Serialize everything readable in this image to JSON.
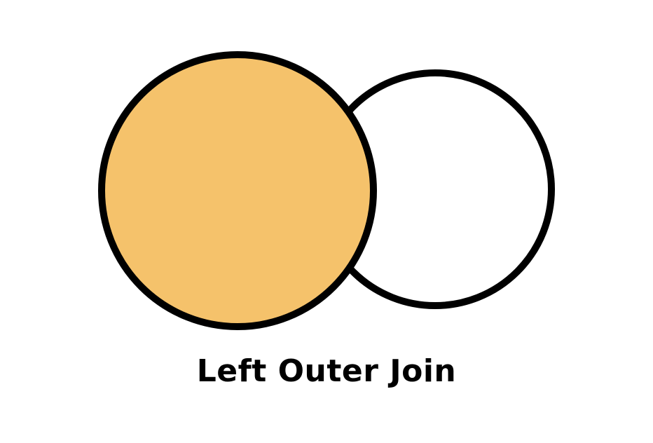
{
  "diagram": {
    "type": "venn",
    "caption": "Left Outer Join",
    "sets": [
      {
        "name": "",
        "highlighted": true
      },
      {
        "name": "",
        "highlighted": false
      }
    ]
  },
  "colors": {
    "highlight_fill": "#f5c26b",
    "outline": "#000000",
    "background": "#ffffff"
  }
}
